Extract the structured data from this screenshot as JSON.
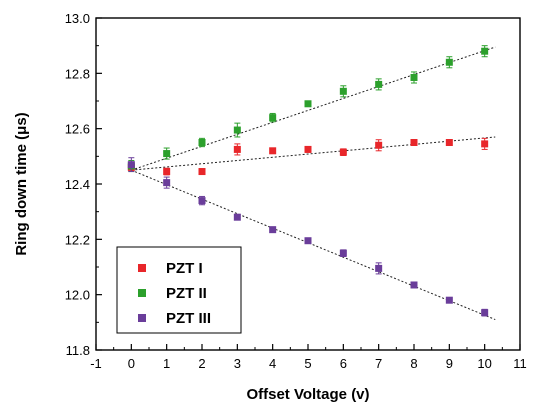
{
  "chart_data": {
    "type": "scatter",
    "title": "",
    "xlabel": "Offset Voltage (v)",
    "ylabel": "Ring down time (μs)",
    "xlim": [
      -1,
      11
    ],
    "ylim": [
      11.8,
      13.0
    ],
    "xticks": [
      -1,
      0,
      1,
      2,
      3,
      4,
      5,
      6,
      7,
      8,
      9,
      10,
      11
    ],
    "yticks": [
      11.8,
      12.0,
      12.2,
      12.4,
      12.6,
      12.8,
      13.0
    ],
    "xtick_labels": [
      "-1",
      "0",
      "1",
      "2",
      "3",
      "4",
      "5",
      "6",
      "7",
      "8",
      "9",
      "10",
      "11"
    ],
    "ytick_labels": [
      "11.8",
      "12.0",
      "12.2",
      "12.4",
      "12.6",
      "12.8",
      "13.0"
    ],
    "legend_position": "bottom-left",
    "grid": false,
    "series": [
      {
        "name": "PZT I",
        "color": "#e8262a",
        "x": [
          0,
          1,
          2,
          3,
          4,
          5,
          6,
          7,
          8,
          9,
          10
        ],
        "y": [
          12.46,
          12.445,
          12.445,
          12.525,
          12.52,
          12.525,
          12.515,
          12.54,
          12.55,
          12.55,
          12.545
        ],
        "err": [
          0.01,
          0.012,
          0.01,
          0.02,
          0.008,
          0.01,
          0.012,
          0.02,
          0.008,
          0.006,
          0.02
        ],
        "fit": {
          "x": [
            0,
            10.3
          ],
          "y": [
            12.45,
            12.57
          ]
        }
      },
      {
        "name": "PZT II",
        "color": "#2ca02c",
        "x": [
          0,
          1,
          2,
          3,
          4,
          5,
          6,
          7,
          8,
          9,
          10
        ],
        "y": [
          12.465,
          12.51,
          12.55,
          12.595,
          12.64,
          12.69,
          12.735,
          12.76,
          12.785,
          12.84,
          12.88
        ],
        "err": [
          0.02,
          0.02,
          0.015,
          0.025,
          0.015,
          0.01,
          0.02,
          0.02,
          0.02,
          0.02,
          0.02
        ],
        "fit": {
          "x": [
            0,
            10.3
          ],
          "y": [
            12.45,
            12.895
          ]
        }
      },
      {
        "name": "PZT III",
        "color": "#6a3d9a",
        "x": [
          0,
          1,
          2,
          3,
          4,
          5,
          6,
          7,
          8,
          9,
          10
        ],
        "y": [
          12.47,
          12.405,
          12.34,
          12.28,
          12.235,
          12.195,
          12.15,
          12.095,
          12.035,
          11.98,
          11.935
        ],
        "err": [
          0.025,
          0.02,
          0.015,
          0.01,
          0.008,
          0.008,
          0.012,
          0.02,
          0.01,
          0.006,
          0.012
        ],
        "fit": {
          "x": [
            0,
            10.3
          ],
          "y": [
            12.45,
            11.91
          ]
        }
      }
    ]
  }
}
